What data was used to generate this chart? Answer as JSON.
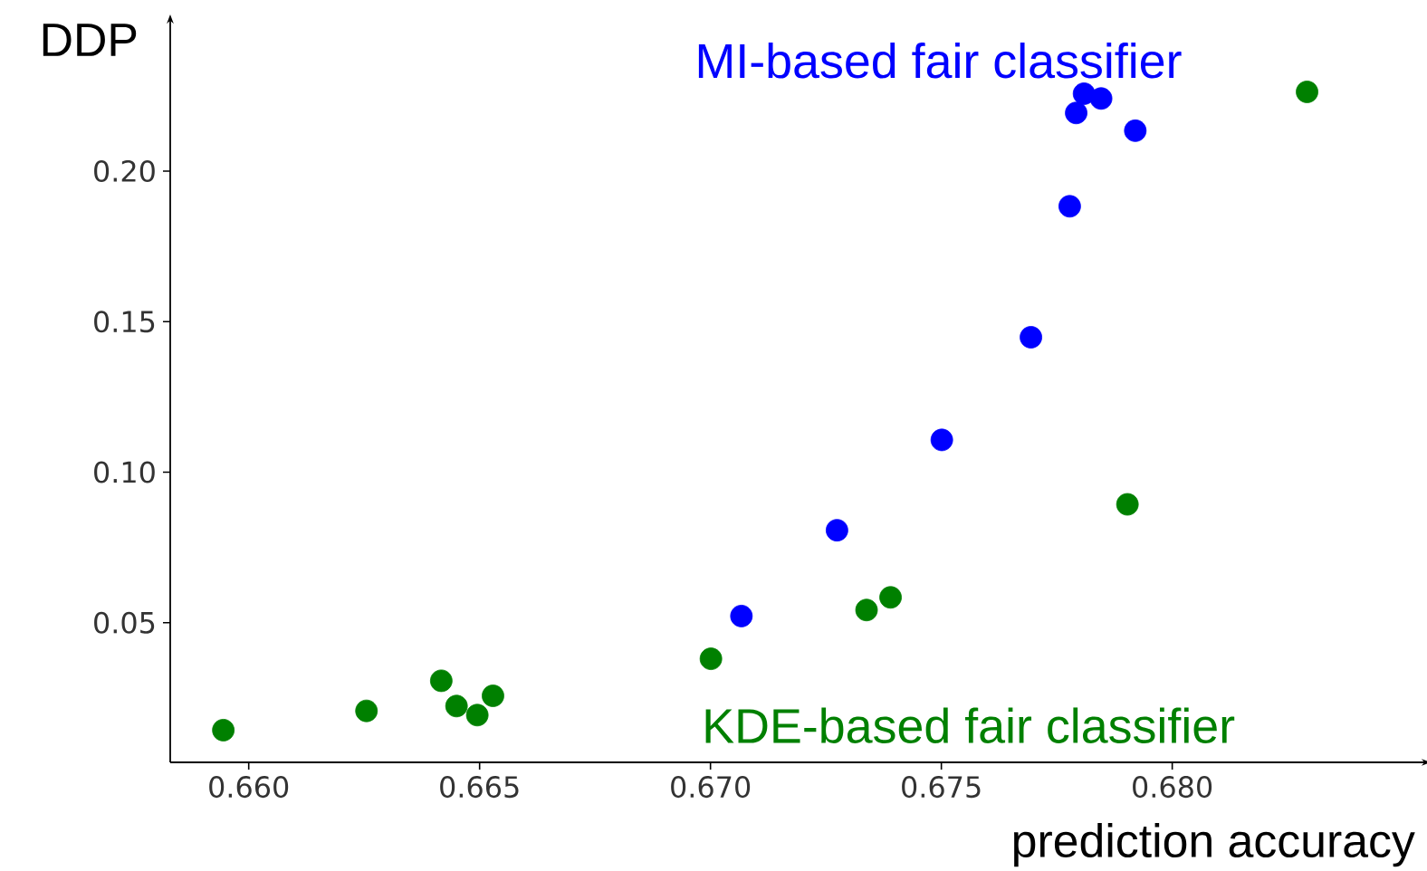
{
  "chart_data": {
    "type": "scatter",
    "xlabel": "prediction accuracy",
    "ylabel": "DDP",
    "xlim": [
      0.6583,
      0.6854
    ],
    "ylim": [
      0.0036,
      0.249
    ],
    "xticks": [
      {
        "value": 0.66,
        "label": "0.660"
      },
      {
        "value": 0.665,
        "label": "0.665"
      },
      {
        "value": 0.67,
        "label": "0.670"
      },
      {
        "value": 0.675,
        "label": "0.675"
      },
      {
        "value": 0.68,
        "label": "0.680"
      }
    ],
    "yticks": [
      0.05,
      {
        "value": 0.1,
        "label": "0.10"
      },
      0.15,
      {
        "value": 0.2,
        "label": "0.20"
      }
    ],
    "grid": false,
    "marker": "circle",
    "series": [
      {
        "name": "MI-based fair classifier",
        "color": "#0000ff",
        "x": [
          0.67067,
          0.67274,
          0.67501,
          0.67694,
          0.67778,
          0.67792,
          0.67809,
          0.67846,
          0.6792
        ],
        "values": [
          0.0522,
          0.0807,
          0.1107,
          0.1448,
          0.1883,
          0.2193,
          0.2257,
          0.2241,
          0.2134
        ]
      },
      {
        "name": "KDE-based fair classifier",
        "color": "#008000",
        "x": [
          0.65945,
          0.66255,
          0.66417,
          0.6645,
          0.66495,
          0.66529,
          0.67001,
          0.67338,
          0.6739,
          0.67903,
          0.68292
        ],
        "values": [
          0.0143,
          0.0207,
          0.0307,
          0.0223,
          0.0193,
          0.0257,
          0.038,
          0.0542,
          0.0584,
          0.0893,
          0.2263
        ]
      }
    ]
  }
}
